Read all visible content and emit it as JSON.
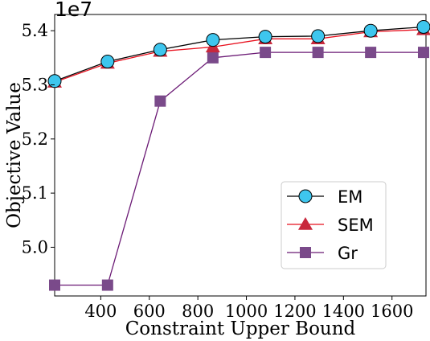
{
  "chart_data": {
    "type": "line",
    "xlabel": "Constraint Upper Bound",
    "ylabel": "Objective Value",
    "y_multiplier_label": "1e7",
    "xlim": [
      210,
      1740
    ],
    "ylim": [
      4.91,
      5.43
    ],
    "x_ticks": [
      {
        "value": 400,
        "label": "400"
      },
      {
        "value": 600,
        "label": "600"
      },
      {
        "value": 800,
        "label": "800"
      },
      {
        "value": 1000,
        "label": "1000"
      },
      {
        "value": 1200,
        "label": "1200"
      },
      {
        "value": 1400,
        "label": "1400"
      },
      {
        "value": 1600,
        "label": "1600"
      }
    ],
    "y_ticks": [
      {
        "value": 5.0,
        "label": "5.0"
      },
      {
        "value": 5.1,
        "label": "5.1"
      },
      {
        "value": 5.2,
        "label": "5.2"
      },
      {
        "value": 5.3,
        "label": "5.3"
      },
      {
        "value": 5.4,
        "label": "5.4"
      }
    ],
    "x": [
      210,
      428,
      645,
      862,
      1078,
      1295,
      1512,
      1730
    ],
    "series": [
      {
        "name": "EM",
        "color": "#000000",
        "marker": "circle",
        "marker_color": "#3ec6ee",
        "values": [
          5.307,
          5.343,
          5.365,
          5.383,
          5.389,
          5.39,
          5.4,
          5.407
        ]
      },
      {
        "name": "SEM",
        "color": "#e8101e",
        "marker": "triangle",
        "marker_color": "#c8283c",
        "values": [
          5.305,
          5.34,
          5.362,
          5.37,
          5.385,
          5.385,
          5.398,
          5.402
        ]
      },
      {
        "name": "Gr",
        "color": "#6b1a75",
        "marker": "square",
        "marker_color": "#7a4a8a",
        "values": [
          4.93,
          4.93,
          5.27,
          5.35,
          5.36,
          5.36,
          5.36,
          5.36
        ]
      }
    ],
    "legend_position": "lower-right",
    "grid": false
  }
}
